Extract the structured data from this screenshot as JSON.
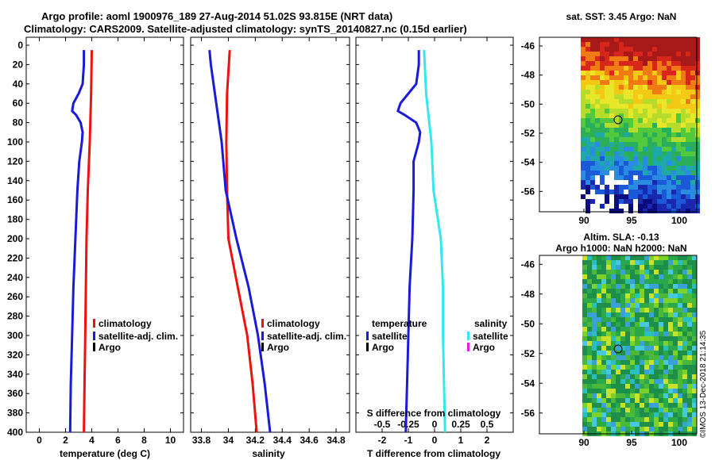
{
  "header": {
    "line1": "Argo profile: aoml 1900976_189 27-Aug-2014 51.02S 93.815E (NRT data)",
    "line2": "Climatology: CARS2009. Satellite-adjusted climatology: synTS_20140827.nc (0.15d earlier)"
  },
  "stamp": "©IMOS 13-Dec-2018 21:14:35",
  "colors": {
    "climatology": "#ee1111",
    "satellite": "#1a1ad8",
    "argo": "#000000",
    "salinity_sat": "#33e8f0",
    "salinity_argo": "#e020e0"
  },
  "chart_data": [
    {
      "type": "line",
      "id": "temperature",
      "xlabel": "temperature (deg C)",
      "ylabel": "",
      "xlim": [
        -1,
        11
      ],
      "ylim": [
        400,
        0
      ],
      "xticks": [
        0,
        2,
        4,
        6,
        8,
        10
      ],
      "yticks": [
        0,
        20,
        40,
        60,
        80,
        100,
        120,
        140,
        160,
        180,
        200,
        220,
        240,
        260,
        280,
        300,
        320,
        340,
        360,
        380,
        400
      ],
      "grid": false,
      "legend": {
        "placement": "bottom-right",
        "entries": [
          "climatology",
          "satellite-adj. clim.",
          "Argo"
        ]
      },
      "series": [
        {
          "name": "climatology",
          "color_key": "climatology",
          "depth": [
            5,
            50,
            100,
            150,
            200,
            250,
            300,
            350,
            400
          ],
          "values": [
            4.0,
            3.95,
            3.85,
            3.7,
            3.6,
            3.55,
            3.5,
            3.45,
            3.4
          ]
        },
        {
          "name": "satellite-adj. clim.",
          "color_key": "satellite",
          "depth": [
            5,
            20,
            40,
            50,
            60,
            68,
            72,
            80,
            90,
            100,
            120,
            150,
            200,
            250,
            300,
            350,
            400
          ],
          "values": [
            3.4,
            3.4,
            3.3,
            3.0,
            2.6,
            2.5,
            2.8,
            3.15,
            3.3,
            3.25,
            3.05,
            2.9,
            2.75,
            2.6,
            2.5,
            2.4,
            2.35
          ]
        }
      ]
    },
    {
      "type": "line",
      "id": "salinity",
      "xlabel": "salinity",
      "xlim": [
        33.72,
        34.9
      ],
      "ylim": [
        400,
        0
      ],
      "xticks": [
        33.8,
        34,
        34.2,
        34.4,
        34.6,
        34.8
      ],
      "grid": false,
      "legend": {
        "placement": "bottom-right",
        "entries": [
          "climatology",
          "satellite-adj. clim.",
          "Argo"
        ]
      },
      "series": [
        {
          "name": "climatology",
          "color_key": "climatology",
          "depth": [
            5,
            50,
            100,
            150,
            200,
            250,
            300,
            350,
            400
          ],
          "values": [
            34.01,
            33.99,
            33.985,
            33.99,
            34.0,
            34.07,
            34.14,
            34.18,
            34.21
          ]
        },
        {
          "name": "satellite-adj. clim.",
          "color_key": "satellite",
          "depth": [
            5,
            20,
            50,
            100,
            150,
            200,
            250,
            300,
            350,
            400
          ],
          "values": [
            33.86,
            33.87,
            33.9,
            33.95,
            33.98,
            34.06,
            34.15,
            34.22,
            34.27,
            34.31
          ]
        }
      ]
    },
    {
      "type": "line",
      "id": "difference",
      "xlabel": "T difference from climatology",
      "xlabel_top": "S difference from climatology",
      "xlim": [
        -3,
        3
      ],
      "ylim": [
        400,
        0
      ],
      "xticks": [
        -2,
        -1,
        0,
        1,
        2
      ],
      "xtick_labels": [
        "-2",
        "-1",
        "0",
        "1",
        "2"
      ],
      "xticks_s": [
        -0.5,
        -0.25,
        0,
        0.25,
        0.5
      ],
      "xtick_labels_s": [
        "-0.5",
        "-0.25",
        "0",
        "0.25",
        "0.5"
      ],
      "grid": false,
      "legend": {
        "temperature_title": "temperature",
        "salinity_title": "salinity",
        "entries_t": [
          "satellite",
          "Argo"
        ],
        "entries_s": [
          "satellite",
          "Argo"
        ]
      },
      "series": [
        {
          "name": "temperature satellite",
          "color_key": "satellite",
          "depth": [
            5,
            20,
            40,
            50,
            60,
            68,
            72,
            80,
            90,
            100,
            120,
            150,
            200,
            250,
            300,
            350,
            400
          ],
          "values": [
            -0.6,
            -0.6,
            -0.7,
            -1.0,
            -1.3,
            -1.4,
            -1.15,
            -0.7,
            -0.55,
            -0.6,
            -0.8,
            -0.8,
            -0.85,
            -0.95,
            -1.0,
            -1.05,
            -1.1
          ]
        },
        {
          "name": "salinity satellite",
          "color_key": "salinity_sat",
          "depth": [
            5,
            50,
            100,
            150,
            200,
            250,
            300,
            350,
            400
          ],
          "values": [
            -0.1,
            -0.08,
            -0.03,
            -0.01,
            0.06,
            0.08,
            0.08,
            0.09,
            0.1
          ]
        }
      ]
    }
  ],
  "maps": {
    "sst": {
      "title": "sat. SST: 3.45 Argo: NaN",
      "yticks": [
        "-46",
        "-48",
        "-50",
        "-52",
        "-54",
        "-56"
      ],
      "xticks": [
        "90",
        "95",
        "100"
      ]
    },
    "sla": {
      "title1": "Altim. SLA: -0.13",
      "title2": "Argo h1000: NaN h2000: NaN",
      "yticks": [
        "-46",
        "-48",
        "-50",
        "-52",
        "-54",
        "-56"
      ],
      "xticks": [
        "90",
        "95",
        "100"
      ]
    }
  }
}
